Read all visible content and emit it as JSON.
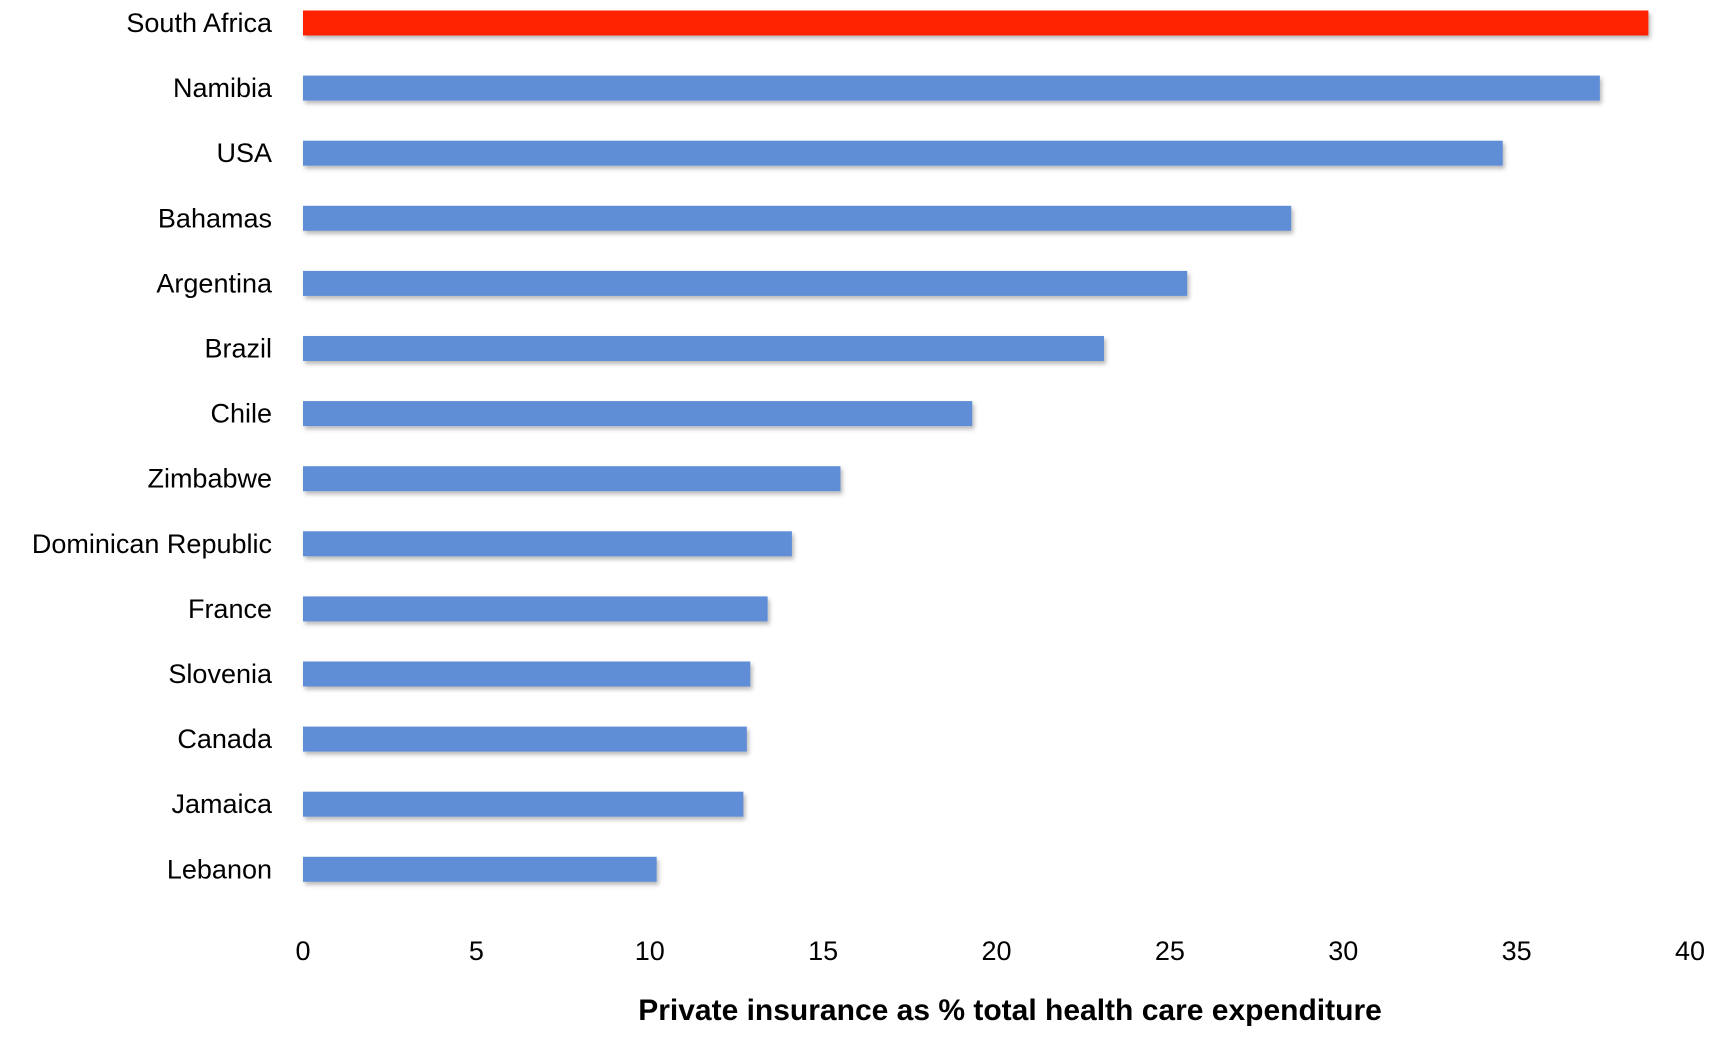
{
  "chart_data": {
    "type": "bar",
    "orientation": "horizontal",
    "title": "",
    "xlabel": "Private insurance as % total health care expenditure",
    "ylabel": "",
    "xlim": [
      0,
      40
    ],
    "xticks": [
      "0",
      "5",
      "10",
      "15",
      "20",
      "25",
      "30",
      "35",
      "40"
    ],
    "grid": false,
    "categories": [
      "South Africa",
      "Namibia",
      "USA",
      "Bahamas",
      "Argentina",
      "Brazil",
      "Chile",
      "Zimbabwe",
      "Dominican Republic",
      "France",
      "Slovenia",
      "Canada",
      "Jamaica",
      "Lebanon"
    ],
    "values": [
      38.8,
      37.4,
      34.6,
      28.5,
      25.5,
      23.1,
      19.3,
      15.5,
      14.1,
      13.4,
      12.9,
      12.8,
      12.7,
      10.2
    ],
    "highlight_category": "South Africa",
    "colors": {
      "bar": "#5f8dd6",
      "highlight": "#ff2200"
    }
  }
}
